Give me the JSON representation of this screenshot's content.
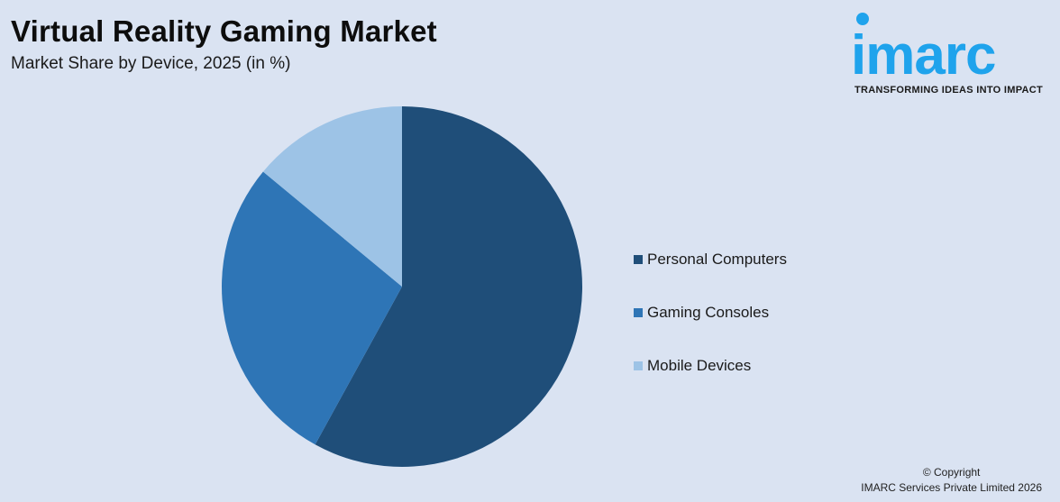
{
  "header": {
    "title": "Virtual Reality Gaming Market",
    "subtitle": "Market Share by Device, 2025 (in %)"
  },
  "logo": {
    "word": "imarc",
    "tagline": "TRANSFORMING IDEAS INTO IMPACT",
    "color": "#1fa3ec"
  },
  "legend": {
    "items": [
      {
        "label": "Personal Computers",
        "color": "#1f4e79"
      },
      {
        "label": "Gaming Consoles",
        "color": "#2e75b6"
      },
      {
        "label": "Mobile Devices",
        "color": "#9dc3e6"
      }
    ]
  },
  "footer": {
    "copyright_line1": "© Copyright",
    "copyright_line2": "IMARC Services Private Limited 2026"
  },
  "chart_data": {
    "type": "pie",
    "title": "Virtual Reality Gaming Market",
    "subtitle": "Market Share by Device, 2025 (in %)",
    "categories": [
      "Personal Computers",
      "Gaming Consoles",
      "Mobile Devices"
    ],
    "values": [
      58,
      28,
      14
    ],
    "colors": [
      "#1f4e79",
      "#2e75b6",
      "#9dc3e6"
    ],
    "start_angle": "12 o'clock, clockwise",
    "data_labels": false,
    "legend_position": "right"
  }
}
